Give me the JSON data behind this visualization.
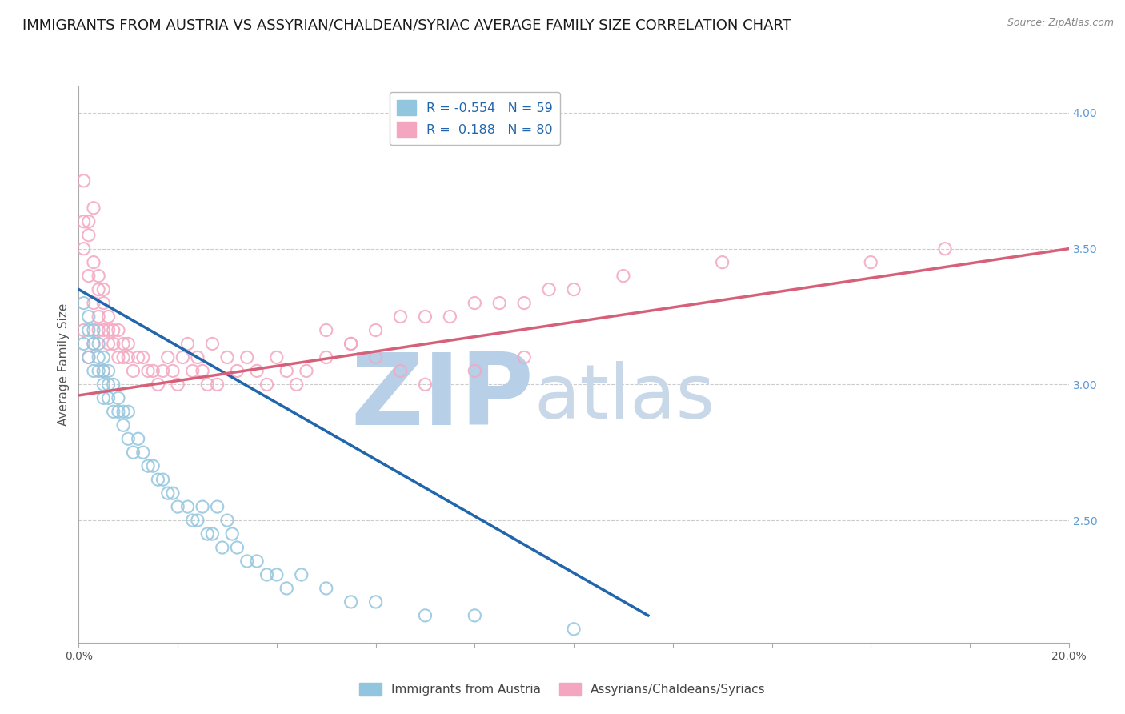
{
  "title": "IMMIGRANTS FROM AUSTRIA VS ASSYRIAN/CHALDEAN/SYRIAC AVERAGE FAMILY SIZE CORRELATION CHART",
  "source": "Source: ZipAtlas.com",
  "ylabel": "Average Family Size",
  "right_yticks": [
    2.5,
    3.0,
    3.5,
    4.0
  ],
  "blue_R": -0.554,
  "blue_N": 59,
  "pink_R": 0.188,
  "pink_N": 80,
  "blue_color": "#92c5de",
  "pink_color": "#f4a6c0",
  "blue_line_color": "#2166ac",
  "pink_line_color": "#d6607a",
  "legend_label_blue": "Immigrants from Austria",
  "legend_label_pink": "Assyrians/Chaldeans/Syriacs",
  "watermark_zip": "ZIP",
  "watermark_atlas": "atlas",
  "blue_scatter_x": [
    0.001,
    0.001,
    0.002,
    0.002,
    0.002,
    0.003,
    0.003,
    0.003,
    0.004,
    0.004,
    0.004,
    0.005,
    0.005,
    0.005,
    0.005,
    0.006,
    0.006,
    0.006,
    0.007,
    0.007,
    0.008,
    0.008,
    0.009,
    0.009,
    0.01,
    0.01,
    0.011,
    0.012,
    0.013,
    0.014,
    0.015,
    0.016,
    0.017,
    0.018,
    0.019,
    0.02,
    0.022,
    0.023,
    0.024,
    0.025,
    0.026,
    0.027,
    0.028,
    0.029,
    0.03,
    0.031,
    0.032,
    0.034,
    0.036,
    0.038,
    0.04,
    0.042,
    0.045,
    0.05,
    0.055,
    0.06,
    0.07,
    0.08,
    0.1
  ],
  "blue_scatter_y": [
    3.3,
    3.15,
    3.25,
    3.1,
    3.2,
    3.15,
    3.05,
    3.2,
    3.1,
    3.05,
    3.15,
    3.0,
    3.05,
    2.95,
    3.1,
    3.0,
    2.95,
    3.05,
    2.9,
    3.0,
    2.9,
    2.95,
    2.85,
    2.9,
    2.8,
    2.9,
    2.75,
    2.8,
    2.75,
    2.7,
    2.7,
    2.65,
    2.65,
    2.6,
    2.6,
    2.55,
    2.55,
    2.5,
    2.5,
    2.55,
    2.45,
    2.45,
    2.55,
    2.4,
    2.5,
    2.45,
    2.4,
    2.35,
    2.35,
    2.3,
    2.3,
    2.25,
    2.3,
    2.25,
    2.2,
    2.2,
    2.15,
    2.15,
    2.1
  ],
  "pink_scatter_x": [
    0.001,
    0.001,
    0.001,
    0.002,
    0.002,
    0.002,
    0.003,
    0.003,
    0.003,
    0.004,
    0.004,
    0.004,
    0.005,
    0.005,
    0.005,
    0.006,
    0.006,
    0.006,
    0.007,
    0.007,
    0.008,
    0.008,
    0.009,
    0.009,
    0.01,
    0.01,
    0.011,
    0.012,
    0.013,
    0.014,
    0.015,
    0.016,
    0.017,
    0.018,
    0.019,
    0.02,
    0.021,
    0.022,
    0.023,
    0.024,
    0.025,
    0.026,
    0.027,
    0.028,
    0.03,
    0.032,
    0.034,
    0.036,
    0.038,
    0.04,
    0.042,
    0.044,
    0.046,
    0.05,
    0.055,
    0.06,
    0.065,
    0.07,
    0.08,
    0.09,
    0.001,
    0.002,
    0.003,
    0.004,
    0.005,
    0.05,
    0.055,
    0.06,
    0.065,
    0.07,
    0.075,
    0.08,
    0.085,
    0.09,
    0.095,
    0.1,
    0.11,
    0.13,
    0.16,
    0.175
  ],
  "pink_scatter_y": [
    3.6,
    3.75,
    3.5,
    3.55,
    3.6,
    3.4,
    3.45,
    3.65,
    3.3,
    3.35,
    3.4,
    3.25,
    3.2,
    3.3,
    3.35,
    3.2,
    3.15,
    3.25,
    3.15,
    3.2,
    3.1,
    3.2,
    3.1,
    3.15,
    3.1,
    3.15,
    3.05,
    3.1,
    3.1,
    3.05,
    3.05,
    3.0,
    3.05,
    3.1,
    3.05,
    3.0,
    3.1,
    3.15,
    3.05,
    3.1,
    3.05,
    3.0,
    3.15,
    3.0,
    3.1,
    3.05,
    3.1,
    3.05,
    3.0,
    3.1,
    3.05,
    3.0,
    3.05,
    3.1,
    3.15,
    3.1,
    3.05,
    3.0,
    3.05,
    3.1,
    3.2,
    3.1,
    3.15,
    3.2,
    3.05,
    3.2,
    3.15,
    3.2,
    3.25,
    3.25,
    3.25,
    3.3,
    3.3,
    3.3,
    3.35,
    3.35,
    3.4,
    3.45,
    3.45,
    3.5
  ],
  "blue_regline_x": [
    0.0,
    0.115
  ],
  "blue_regline_y": [
    3.35,
    2.15
  ],
  "pink_regline_x": [
    0.0,
    0.2
  ],
  "pink_regline_y": [
    2.96,
    3.5
  ],
  "xmin": 0.0,
  "xmax": 0.2,
  "ymin": 2.05,
  "ymax": 4.1,
  "grid_color": "#cccccc",
  "bg_color": "#ffffff",
  "title_fontsize": 13,
  "label_fontsize": 11,
  "tick_fontsize": 10,
  "watermark_color_zip": "#b8cfe8",
  "watermark_color_atlas": "#c8d8e8",
  "watermark_fontsize": 90
}
